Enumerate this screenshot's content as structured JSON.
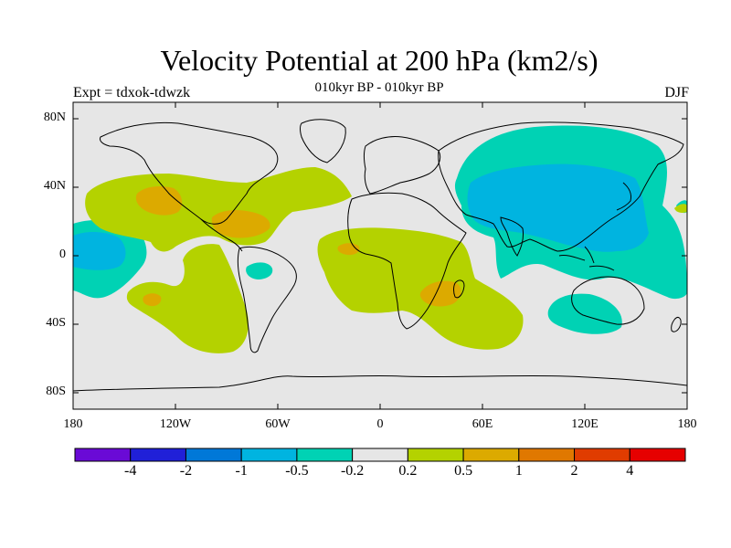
{
  "title": "Velocity Potential at 200 hPa (km2/s)",
  "subtitle": "010kyr BP - 010kyr BP",
  "left_label": "Expt = tdxok-tdwzk",
  "right_label": "DJF",
  "y_ticks": [
    "80N",
    "40N",
    "0",
    "40S",
    "80S"
  ],
  "x_ticks": [
    "180",
    "120W",
    "60W",
    "0",
    "60E",
    "120E",
    "180"
  ],
  "colorbar": {
    "colors": [
      "#6a0ad6",
      "#2020d8",
      "#0078d8",
      "#00b4e0",
      "#00d2b4",
      "#e6e6e6",
      "#b4d200",
      "#dcaa00",
      "#e07800",
      "#e03c00",
      "#e60000"
    ],
    "labels": [
      "-4",
      "-2",
      "-1",
      "-0.5",
      "-0.2",
      "0.2",
      "0.5",
      "1",
      "2",
      "4"
    ]
  },
  "chart_data": {
    "type": "heatmap",
    "title": "Velocity Potential at 200 hPa (km2/s)",
    "subtitle": "010kyr BP - 010kyr BP",
    "variable": "Velocity Potential at 200 hPa",
    "units": "km2/s",
    "experiment": "Expt = tdxok-tdwzk",
    "season": "DJF",
    "projection": "cylindrical equidistant",
    "xlim": [
      -180,
      180
    ],
    "ylim": [
      -90,
      90
    ],
    "contour_levels": [
      -4,
      -2,
      -1,
      -0.5,
      -0.2,
      0.2,
      0.5,
      1,
      2,
      4
    ],
    "features": [
      {
        "region": "central Asia / Siberia / Pacific",
        "range": "-1 to -0.2",
        "sign": "negative"
      },
      {
        "region": "eastern Asia / western Pacific",
        "range": "-1 to -0.5",
        "sign": "negative"
      },
      {
        "region": "central North Pacific near equator",
        "range": "-1 to -0.5",
        "sign": "negative"
      },
      {
        "region": "subtropical eastern Pacific / southwest US",
        "range": "0.5 to 1",
        "sign": "positive"
      },
      {
        "region": "Caribbean / Gulf of Mexico",
        "range": "0.5 to 1",
        "sign": "positive"
      },
      {
        "region": "equatorial Atlantic / West Africa",
        "range": "0.5 to 1",
        "sign": "positive"
      },
      {
        "region": "southeast Africa / Madagascar",
        "range": "0.5 to 1",
        "sign": "positive"
      },
      {
        "region": "South Pacific",
        "range": "0.5 to 1",
        "sign": "positive"
      }
    ]
  }
}
